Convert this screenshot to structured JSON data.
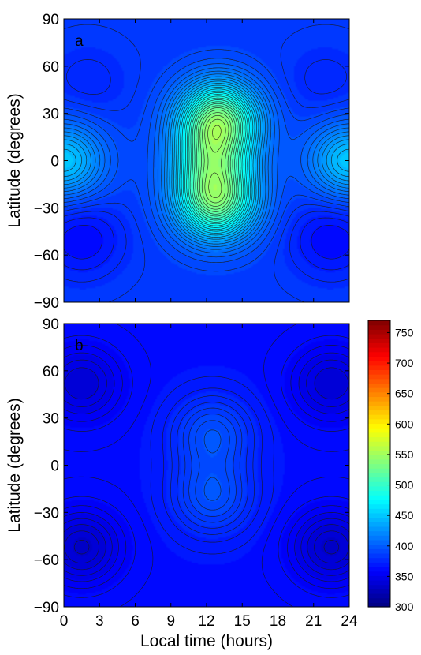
{
  "chart_data": [
    {
      "type": "heatmap",
      "panel_label": "a",
      "xlabel": "",
      "ylabel": "Latitude (degrees)",
      "xlim": [
        0,
        24
      ],
      "ylim": [
        -90,
        90
      ],
      "x_ticks": [
        0,
        3,
        6,
        9,
        12,
        15,
        18,
        21,
        24
      ],
      "y_ticks": [
        -90,
        -60,
        -30,
        0,
        30,
        60,
        90
      ],
      "y_tick_labels": [
        "−90",
        "−60",
        "−30",
        "0",
        "30",
        "60",
        "90"
      ],
      "features": [
        {
          "x": 13,
          "y": 27,
          "value": 520
        },
        {
          "x": 12.8,
          "y": -27,
          "value": 515
        },
        {
          "x": 12.5,
          "y": 0,
          "value": 470
        },
        {
          "x": 0,
          "y": 0,
          "value": 450
        },
        {
          "x": 24,
          "y": 0,
          "value": 450
        },
        {
          "x": 1.5,
          "y": -50,
          "value": 360
        },
        {
          "x": 22.5,
          "y": -50,
          "value": 360
        },
        {
          "x": 2,
          "y": 50,
          "value": 375
        },
        {
          "x": 22,
          "y": 50,
          "value": 375
        }
      ],
      "background_value": 385
    },
    {
      "type": "heatmap",
      "panel_label": "b",
      "xlabel": "Local time (hours)",
      "ylabel": "Latitude (degrees)",
      "xlim": [
        0,
        24
      ],
      "ylim": [
        -90,
        90
      ],
      "x_ticks": [
        0,
        3,
        6,
        9,
        12,
        15,
        18,
        21,
        24
      ],
      "y_ticks": [
        -90,
        -60,
        -30,
        0,
        30,
        60,
        90
      ],
      "y_tick_labels": [
        "−90",
        "−60",
        "−30",
        "0",
        "30",
        "60",
        "90"
      ],
      "features": [
        {
          "x": 12.5,
          "y": 20,
          "value": 395
        },
        {
          "x": 12.5,
          "y": -20,
          "value": 395
        },
        {
          "x": 1.5,
          "y": -52,
          "value": 335
        },
        {
          "x": 22.5,
          "y": -52,
          "value": 335
        },
        {
          "x": 1.5,
          "y": 52,
          "value": 340
        },
        {
          "x": 22.5,
          "y": 52,
          "value": 340
        }
      ],
      "background_value": 365
    }
  ],
  "colorbar": {
    "range": [
      300,
      770
    ],
    "ticks": [
      300,
      350,
      400,
      450,
      500,
      550,
      600,
      650,
      700,
      750
    ]
  }
}
